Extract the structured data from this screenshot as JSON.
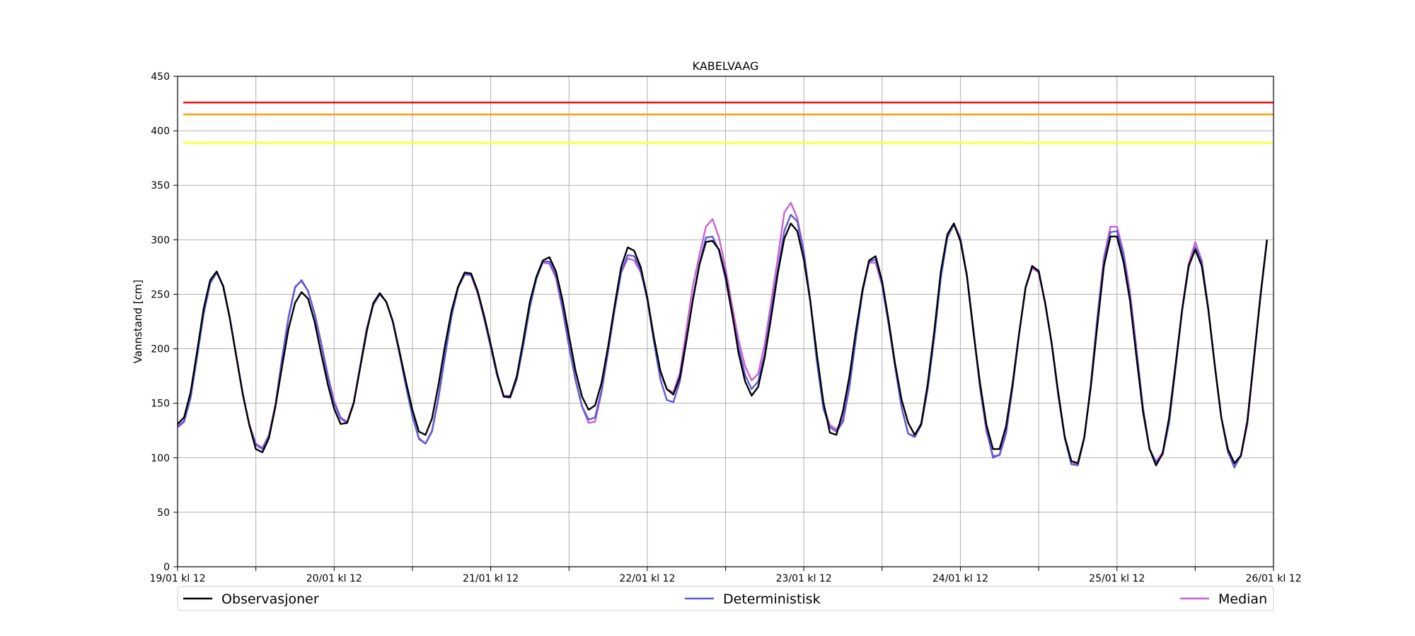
{
  "chart_data": {
    "type": "line",
    "title": "KABELVAAG",
    "xlabel": "",
    "ylabel": "Vannstand [cm]",
    "ylim": [
      0,
      450
    ],
    "yticks": [
      0,
      50,
      100,
      150,
      200,
      250,
      300,
      350,
      400,
      450
    ],
    "x_labels": [
      "19/01 kl 12",
      "20/01 kl 12",
      "21/01 kl 12",
      "22/01 kl 12",
      "23/01 kl 12",
      "24/01 kl 12",
      "25/01 kl 12",
      "26/01 kl 12"
    ],
    "x_minor_ticks_per_interval": 1,
    "x_interval_hours": 24,
    "sample_interval_hours": 1,
    "grid": true,
    "legend_position": "bottom",
    "thresholds": [
      {
        "value": 426,
        "color": "#e31a1c"
      },
      {
        "value": 415,
        "color": "#ff9f1a"
      },
      {
        "value": 389,
        "color": "#ffff33"
      }
    ],
    "series": [
      {
        "name": "Observasjoner",
        "color": "#000000",
        "values": [
          131,
          137,
          160,
          198,
          237,
          263,
          271,
          257,
          228,
          193,
          158,
          130,
          108,
          105,
          118,
          147,
          183,
          218,
          242,
          252,
          246,
          225,
          196,
          168,
          145,
          131,
          132,
          150,
          183,
          216,
          242,
          251,
          243,
          225,
          198,
          170,
          144,
          124,
          121,
          136,
          167,
          203,
          235,
          257,
          270,
          269,
          253,
          230,
          204,
          177,
          156,
          156,
          175,
          208,
          243,
          266,
          281,
          284,
          271,
          245,
          212,
          180,
          156,
          144,
          148,
          169,
          202,
          240,
          275,
          293,
          290,
          275,
          247,
          211,
          180,
          163,
          158,
          174,
          208,
          245,
          277,
          298,
          299,
          291,
          267,
          233,
          196,
          170,
          157,
          165,
          192,
          229,
          269,
          301,
          315,
          308,
          282,
          243,
          195,
          151,
          123,
          121,
          143,
          175,
          217,
          254,
          281,
          285,
          262,
          226,
          186,
          153,
          132,
          121,
          131,
          168,
          216,
          271,
          305,
          315,
          299,
          267,
          215,
          169,
          130,
          108,
          108,
          129,
          168,
          214,
          256,
          276,
          271,
          242,
          205,
          160,
          119,
          97,
          95,
          119,
          165,
          222,
          276,
          303,
          303,
          280,
          244,
          192,
          142,
          108,
          93,
          104,
          137,
          186,
          236,
          276,
          291,
          276,
          236,
          185,
          137,
          108,
          95,
          102,
          134,
          191,
          248,
          300
        ]
      },
      {
        "name": "Deterministisk",
        "color": "#5b5bd6",
        "values": [
          128,
          133,
          155,
          193,
          232,
          260,
          270,
          258,
          228,
          193,
          158,
          130,
          112,
          108,
          120,
          148,
          190,
          228,
          256,
          263,
          253,
          232,
          205,
          175,
          150,
          136,
          132,
          150,
          184,
          218,
          240,
          250,
          243,
          225,
          196,
          166,
          138,
          118,
          113,
          124,
          155,
          193,
          230,
          256,
          268,
          268,
          252,
          228,
          202,
          175,
          156,
          155,
          172,
          203,
          238,
          264,
          280,
          280,
          267,
          238,
          203,
          172,
          147,
          135,
          137,
          162,
          198,
          236,
          270,
          286,
          285,
          272,
          245,
          207,
          172,
          153,
          151,
          170,
          207,
          246,
          278,
          302,
          303,
          290,
          264,
          232,
          201,
          176,
          163,
          170,
          195,
          234,
          272,
          308,
          323,
          317,
          288,
          243,
          188,
          145,
          128,
          124,
          133,
          165,
          210,
          252,
          280,
          282,
          259,
          223,
          183,
          146,
          122,
          119,
          130,
          163,
          210,
          265,
          302,
          314,
          301,
          268,
          218,
          165,
          126,
          100,
          103,
          123,
          165,
          214,
          257,
          275,
          272,
          242,
          205,
          158,
          118,
          94,
          93,
          118,
          167,
          228,
          281,
          307,
          308,
          286,
          248,
          198,
          145,
          108,
          96,
          103,
          132,
          183,
          235,
          275,
          293,
          280,
          237,
          184,
          137,
          106,
          91,
          102,
          133,
          191,
          250,
          300
        ]
      },
      {
        "name": "Median",
        "color": "#c860d6",
        "values": [
          129,
          134,
          156,
          194,
          233,
          261,
          270,
          258,
          229,
          194,
          159,
          131,
          113,
          109,
          121,
          149,
          191,
          229,
          257,
          262,
          253,
          233,
          206,
          177,
          152,
          137,
          133,
          151,
          185,
          219,
          241,
          251,
          243,
          224,
          196,
          166,
          139,
          117,
          113,
          125,
          156,
          194,
          231,
          257,
          269,
          267,
          251,
          227,
          201,
          175,
          157,
          157,
          173,
          204,
          239,
          265,
          279,
          278,
          265,
          236,
          202,
          171,
          147,
          132,
          133,
          160,
          197,
          236,
          270,
          283,
          281,
          270,
          247,
          210,
          178,
          163,
          160,
          178,
          218,
          258,
          286,
          312,
          319,
          302,
          274,
          240,
          208,
          184,
          171,
          177,
          204,
          243,
          283,
          325,
          334,
          320,
          290,
          244,
          190,
          148,
          130,
          126,
          136,
          168,
          213,
          255,
          279,
          279,
          258,
          222,
          184,
          146,
          122,
          120,
          132,
          166,
          213,
          268,
          304,
          315,
          302,
          268,
          216,
          164,
          124,
          102,
          102,
          122,
          164,
          213,
          256,
          274,
          270,
          241,
          204,
          157,
          118,
          95,
          94,
          118,
          168,
          230,
          284,
          312,
          312,
          289,
          252,
          200,
          146,
          108,
          96,
          105,
          133,
          184,
          237,
          278,
          298,
          281,
          238,
          185,
          137,
          105,
          93,
          101,
          131,
          189,
          249,
          300
        ]
      }
    ]
  }
}
